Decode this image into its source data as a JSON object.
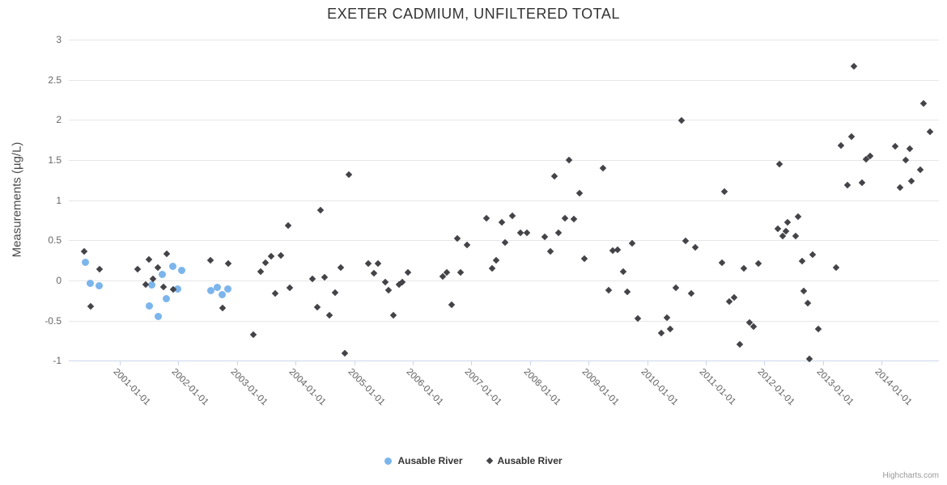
{
  "title": "EXETER CADMIUM, UNFILTERED TOTAL",
  "y_axis": {
    "title": "Measurements (µg/L)",
    "ticks": [
      3,
      2.5,
      2,
      1.5,
      1,
      0.5,
      0,
      -0.5,
      -1
    ],
    "tick_labels": [
      "3",
      "2.5",
      "2",
      "1.5",
      "1",
      "0.5",
      "0",
      "-0.5",
      "-1"
    ]
  },
  "x_axis": {
    "tick_labels": [
      "2001-01-01",
      "2002-01-01",
      "2003-01-01",
      "2004-01-01",
      "2005-01-01",
      "2006-01-01",
      "2007-01-01",
      "2008-01-01",
      "2009-01-01",
      "2010-01-01",
      "2011-01-01",
      "2012-01-01",
      "2013-01-01",
      "2014-01-01"
    ]
  },
  "legend": {
    "items": [
      {
        "label": "Ausable River",
        "marker": "circle",
        "color": "#7cb5ec"
      },
      {
        "label": "Ausable River",
        "marker": "diamond",
        "color": "#434348"
      }
    ]
  },
  "credits": "Highcharts.com",
  "chart_data": {
    "type": "scatter",
    "title": "EXETER CADMIUM, UNFILTERED TOTAL",
    "xlabel": "",
    "ylabel": "Measurements (µg/L)",
    "ylim": [
      -1,
      3
    ],
    "xlim_decimal_years": [
      2000.13,
      2014.98
    ],
    "grid": true,
    "legend_position": "bottom-center",
    "series": [
      {
        "name": "Ausable River",
        "marker": "circle",
        "color": "#7cb5ec",
        "points": [
          [
            2000.41,
            0.23
          ],
          [
            2000.49,
            -0.03
          ],
          [
            2000.65,
            -0.06
          ],
          [
            2001.5,
            -0.32
          ],
          [
            2001.54,
            -0.05
          ],
          [
            2001.66,
            -0.45
          ],
          [
            2001.73,
            0.08
          ],
          [
            2001.8,
            -0.23
          ],
          [
            2001.9,
            0.18
          ],
          [
            2001.99,
            -0.11
          ],
          [
            2002.06,
            0.13
          ],
          [
            2002.56,
            -0.13
          ],
          [
            2002.66,
            -0.08
          ],
          [
            2002.75,
            -0.18
          ],
          [
            2002.85,
            -0.11
          ]
        ]
      },
      {
        "name": "Ausable River",
        "marker": "diamond",
        "color": "#434348",
        "points": [
          [
            2000.39,
            0.36
          ],
          [
            2000.5,
            -0.32
          ],
          [
            2000.65,
            0.14
          ],
          [
            2001.3,
            0.14
          ],
          [
            2001.44,
            -0.05
          ],
          [
            2001.5,
            0.26
          ],
          [
            2001.57,
            0.02
          ],
          [
            2001.65,
            0.16
          ],
          [
            2001.75,
            -0.08
          ],
          [
            2001.8,
            0.33
          ],
          [
            2001.91,
            -0.11
          ],
          [
            2002.54,
            0.25
          ],
          [
            2002.76,
            -0.34
          ],
          [
            2002.85,
            0.21
          ],
          [
            2003.28,
            -0.67
          ],
          [
            2003.4,
            0.11
          ],
          [
            2003.49,
            0.22
          ],
          [
            2003.58,
            0.3
          ],
          [
            2003.65,
            -0.16
          ],
          [
            2003.75,
            0.31
          ],
          [
            2003.87,
            0.68
          ],
          [
            2003.9,
            -0.09
          ],
          [
            2004.29,
            0.02
          ],
          [
            2004.37,
            -0.33
          ],
          [
            2004.43,
            0.88
          ],
          [
            2004.49,
            0.04
          ],
          [
            2004.58,
            -0.43
          ],
          [
            2004.67,
            -0.15
          ],
          [
            2004.77,
            0.16
          ],
          [
            2004.84,
            -0.9
          ],
          [
            2004.91,
            1.32
          ],
          [
            2005.24,
            0.21
          ],
          [
            2005.34,
            0.09
          ],
          [
            2005.41,
            0.21
          ],
          [
            2005.53,
            -0.02
          ],
          [
            2005.59,
            -0.12
          ],
          [
            2005.67,
            -0.43
          ],
          [
            2005.76,
            -0.05
          ],
          [
            2005.82,
            -0.02
          ],
          [
            2005.92,
            0.1
          ],
          [
            2006.51,
            0.05
          ],
          [
            2006.58,
            0.1
          ],
          [
            2006.66,
            -0.3
          ],
          [
            2006.76,
            0.52
          ],
          [
            2006.81,
            0.1
          ],
          [
            2006.93,
            0.44
          ],
          [
            2007.26,
            0.78
          ],
          [
            2007.35,
            0.15
          ],
          [
            2007.42,
            0.25
          ],
          [
            2007.52,
            0.72
          ],
          [
            2007.57,
            0.47
          ],
          [
            2007.7,
            0.81
          ],
          [
            2007.84,
            0.59
          ],
          [
            2007.94,
            0.59
          ],
          [
            2008.25,
            0.54
          ],
          [
            2008.35,
            0.36
          ],
          [
            2008.42,
            1.3
          ],
          [
            2008.49,
            0.59
          ],
          [
            2008.59,
            0.78
          ],
          [
            2008.66,
            1.5
          ],
          [
            2008.75,
            0.77
          ],
          [
            2008.84,
            1.09
          ],
          [
            2008.93,
            0.27
          ],
          [
            2009.25,
            1.4
          ],
          [
            2009.34,
            -0.12
          ],
          [
            2009.41,
            0.37
          ],
          [
            2009.49,
            0.38
          ],
          [
            2009.59,
            0.11
          ],
          [
            2009.66,
            -0.14
          ],
          [
            2009.74,
            0.46
          ],
          [
            2009.84,
            -0.47
          ],
          [
            2010.24,
            -0.65
          ],
          [
            2010.33,
            -0.46
          ],
          [
            2010.39,
            -0.6
          ],
          [
            2010.49,
            -0.09
          ],
          [
            2010.58,
            1.99
          ],
          [
            2010.65,
            0.49
          ],
          [
            2010.75,
            -0.16
          ],
          [
            2010.82,
            0.41
          ],
          [
            2011.28,
            0.22
          ],
          [
            2011.32,
            1.11
          ],
          [
            2011.4,
            -0.26
          ],
          [
            2011.48,
            -0.21
          ],
          [
            2011.58,
            -0.79
          ],
          [
            2011.65,
            0.15
          ],
          [
            2011.75,
            -0.52
          ],
          [
            2011.81,
            -0.57
          ],
          [
            2011.9,
            0.21
          ],
          [
            2012.23,
            0.64
          ],
          [
            2012.26,
            1.45
          ],
          [
            2012.31,
            0.55
          ],
          [
            2012.37,
            0.61
          ],
          [
            2012.4,
            0.72
          ],
          [
            2012.53,
            0.55
          ],
          [
            2012.57,
            0.8
          ],
          [
            2012.64,
            0.24
          ],
          [
            2012.67,
            -0.13
          ],
          [
            2012.74,
            -0.28
          ],
          [
            2012.77,
            -0.98
          ],
          [
            2012.82,
            0.32
          ],
          [
            2012.92,
            -0.6
          ],
          [
            2013.22,
            0.16
          ],
          [
            2013.31,
            1.68
          ],
          [
            2013.42,
            1.19
          ],
          [
            2013.49,
            1.79
          ],
          [
            2013.53,
            2.67
          ],
          [
            2013.66,
            1.22
          ],
          [
            2013.73,
            1.51
          ],
          [
            2013.8,
            1.55
          ],
          [
            2014.23,
            1.67
          ],
          [
            2014.31,
            1.16
          ],
          [
            2014.41,
            1.5
          ],
          [
            2014.48,
            1.64
          ],
          [
            2014.51,
            1.24
          ],
          [
            2014.66,
            1.38
          ],
          [
            2014.72,
            2.2
          ],
          [
            2014.83,
            1.85
          ]
        ]
      }
    ]
  }
}
